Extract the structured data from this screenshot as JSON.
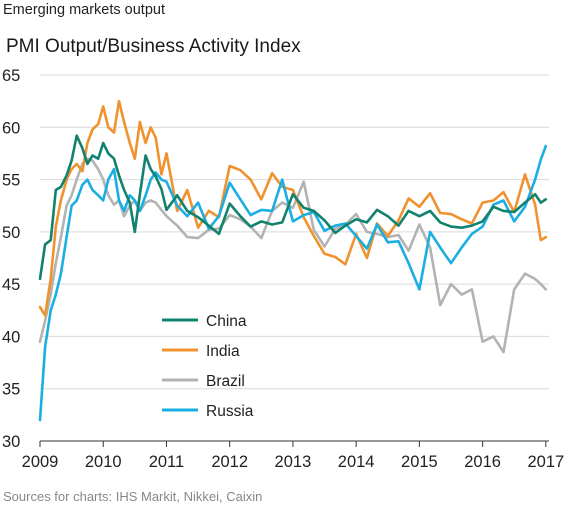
{
  "header": {
    "title": "Emerging markets output"
  },
  "footer": {
    "source": "Sources for charts: IHS Markit, Nikkei, Caixin"
  },
  "chart_data": {
    "type": "line",
    "title": "PMI Output/Business Activity Index",
    "xlabel": "",
    "ylabel": "",
    "xlim": [
      2009,
      2017.05
    ],
    "ylim": [
      30,
      65
    ],
    "yticks": [
      30,
      35,
      40,
      45,
      50,
      55,
      60,
      65
    ],
    "xticks": [
      2009,
      2010,
      2011,
      2012,
      2013,
      2014,
      2015,
      2016,
      2017
    ],
    "grid": "horizontal",
    "legend": "bottom-left",
    "series": [
      {
        "name": "China",
        "color": "#11826e",
        "x": [
          2009.0,
          2009.08,
          2009.17,
          2009.25,
          2009.33,
          2009.42,
          2009.5,
          2009.58,
          2009.67,
          2009.75,
          2009.83,
          2009.92,
          2010.0,
          2010.08,
          2010.17,
          2010.25,
          2010.33,
          2010.42,
          2010.5,
          2010.58,
          2010.67,
          2010.75,
          2010.83,
          2010.92,
          2011.0,
          2011.17,
          2011.33,
          2011.5,
          2011.67,
          2011.83,
          2012.0,
          2012.17,
          2012.33,
          2012.5,
          2012.67,
          2012.83,
          2013.0,
          2013.17,
          2013.33,
          2013.5,
          2013.67,
          2013.83,
          2014.0,
          2014.17,
          2014.33,
          2014.5,
          2014.67,
          2014.83,
          2015.0,
          2015.17,
          2015.33,
          2015.5,
          2015.67,
          2015.83,
          2016.0,
          2016.17,
          2016.33,
          2016.5,
          2016.67,
          2016.83,
          2016.92,
          2017.0
        ],
        "values": [
          45.5,
          48.8,
          49.2,
          54.0,
          54.3,
          55.4,
          56.8,
          59.2,
          58.0,
          56.5,
          57.3,
          57.0,
          58.5,
          57.5,
          57.0,
          55.4,
          54.0,
          52.8,
          50.0,
          53.6,
          57.3,
          56.0,
          55.3,
          54.1,
          52.1,
          53.5,
          52.0,
          51.4,
          50.6,
          49.8,
          52.7,
          51.5,
          50.5,
          51.0,
          50.7,
          50.9,
          53.6,
          52.3,
          52.0,
          51.1,
          49.9,
          50.6,
          51.2,
          50.9,
          52.1,
          51.5,
          50.6,
          52.0,
          51.5,
          52.0,
          50.9,
          50.5,
          50.4,
          50.6,
          51.0,
          52.4,
          52.0,
          51.9,
          52.8,
          53.6,
          52.8,
          53.1
        ]
      },
      {
        "name": "India",
        "color": "#f0922e",
        "x": [
          2009.0,
          2009.08,
          2009.17,
          2009.25,
          2009.33,
          2009.42,
          2009.5,
          2009.58,
          2009.67,
          2009.75,
          2009.83,
          2009.92,
          2010.0,
          2010.08,
          2010.17,
          2010.25,
          2010.33,
          2010.42,
          2010.5,
          2010.58,
          2010.67,
          2010.75,
          2010.83,
          2010.92,
          2011.0,
          2011.17,
          2011.33,
          2011.5,
          2011.67,
          2011.83,
          2012.0,
          2012.17,
          2012.33,
          2012.5,
          2012.67,
          2012.83,
          2013.0,
          2013.17,
          2013.33,
          2013.5,
          2013.67,
          2013.83,
          2014.0,
          2014.17,
          2014.33,
          2014.5,
          2014.67,
          2014.83,
          2015.0,
          2015.17,
          2015.33,
          2015.5,
          2015.67,
          2015.83,
          2016.0,
          2016.17,
          2016.33,
          2016.5,
          2016.67,
          2016.83,
          2016.92,
          2017.0
        ],
        "values": [
          42.8,
          42.0,
          45.5,
          50.5,
          53.0,
          55.0,
          56.0,
          56.5,
          55.8,
          58.5,
          59.8,
          60.3,
          62.0,
          60.0,
          59.5,
          62.5,
          60.5,
          58.5,
          57.0,
          60.5,
          58.5,
          60.0,
          59.0,
          55.5,
          57.5,
          52.0,
          54.0,
          50.4,
          52.0,
          51.4,
          56.3,
          55.9,
          55.0,
          53.1,
          55.6,
          54.3,
          54.0,
          51.4,
          49.6,
          47.9,
          47.6,
          46.9,
          49.8,
          47.5,
          50.8,
          49.6,
          51.1,
          53.2,
          52.4,
          53.7,
          51.8,
          51.7,
          51.2,
          50.8,
          52.8,
          53.0,
          53.8,
          51.9,
          55.5,
          52.6,
          49.2,
          49.5
        ]
      },
      {
        "name": "Brazil",
        "color": "#b3b3b3",
        "x": [
          2009.0,
          2009.08,
          2009.17,
          2009.25,
          2009.33,
          2009.42,
          2009.5,
          2009.58,
          2009.67,
          2009.75,
          2009.83,
          2009.92,
          2010.0,
          2010.08,
          2010.17,
          2010.25,
          2010.33,
          2010.42,
          2010.5,
          2010.58,
          2010.67,
          2010.75,
          2010.83,
          2010.92,
          2011.0,
          2011.17,
          2011.33,
          2011.5,
          2011.67,
          2011.83,
          2012.0,
          2012.17,
          2012.33,
          2012.5,
          2012.67,
          2012.83,
          2013.0,
          2013.17,
          2013.33,
          2013.5,
          2013.67,
          2013.83,
          2014.0,
          2014.17,
          2014.33,
          2014.5,
          2014.67,
          2014.83,
          2015.0,
          2015.17,
          2015.33,
          2015.5,
          2015.67,
          2015.83,
          2016.0,
          2016.17,
          2016.33,
          2016.5,
          2016.67,
          2016.83,
          2016.92,
          2017.0
        ],
        "values": [
          39.5,
          41.5,
          44.0,
          47.0,
          49.5,
          52.5,
          53.5,
          55.0,
          56.5,
          57.0,
          56.8,
          56.0,
          55.0,
          53.5,
          52.6,
          53.0,
          51.5,
          52.5,
          53.0,
          52.0,
          52.8,
          53.0,
          52.8,
          52.1,
          51.5,
          50.6,
          49.5,
          49.4,
          50.2,
          50.3,
          51.6,
          51.2,
          50.5,
          49.4,
          52.0,
          52.8,
          52.3,
          54.8,
          50.2,
          48.6,
          50.3,
          50.7,
          51.7,
          50.0,
          49.8,
          49.5,
          49.7,
          48.2,
          50.7,
          48.5,
          43.0,
          45.0,
          44.0,
          44.5,
          39.5,
          40.0,
          38.5,
          44.5,
          46.0,
          45.5,
          45.0,
          44.5
        ]
      },
      {
        "name": "Russia",
        "color": "#1aaee2",
        "x": [
          2009.0,
          2009.08,
          2009.17,
          2009.25,
          2009.33,
          2009.42,
          2009.5,
          2009.58,
          2009.67,
          2009.75,
          2009.83,
          2009.92,
          2010.0,
          2010.08,
          2010.17,
          2010.25,
          2010.33,
          2010.42,
          2010.5,
          2010.58,
          2010.67,
          2010.75,
          2010.83,
          2010.92,
          2011.0,
          2011.17,
          2011.33,
          2011.5,
          2011.67,
          2011.83,
          2012.0,
          2012.17,
          2012.33,
          2012.5,
          2012.67,
          2012.83,
          2013.0,
          2013.17,
          2013.33,
          2013.5,
          2013.67,
          2013.83,
          2014.0,
          2014.17,
          2014.33,
          2014.5,
          2014.67,
          2014.83,
          2015.0,
          2015.17,
          2015.33,
          2015.5,
          2015.67,
          2015.83,
          2016.0,
          2016.17,
          2016.33,
          2016.5,
          2016.67,
          2016.83,
          2016.92,
          2017.0
        ],
        "values": [
          32.0,
          39.0,
          42.5,
          44.0,
          46.0,
          49.5,
          52.5,
          53.0,
          54.5,
          55.0,
          54.0,
          53.5,
          53.0,
          55.0,
          56.0,
          53.0,
          52.0,
          53.5,
          53.0,
          52.0,
          53.5,
          55.0,
          55.7,
          55.0,
          54.8,
          52.5,
          51.5,
          52.8,
          50.3,
          51.5,
          54.7,
          53.1,
          51.6,
          52.1,
          52.0,
          55.0,
          51.0,
          51.6,
          51.9,
          50.1,
          50.6,
          50.8,
          49.6,
          48.4,
          50.7,
          49.0,
          49.1,
          47.0,
          44.5,
          50.0,
          48.5,
          47.0,
          48.5,
          49.8,
          50.5,
          52.6,
          53.0,
          51.0,
          52.4,
          55.0,
          56.9,
          58.2
        ]
      }
    ]
  }
}
